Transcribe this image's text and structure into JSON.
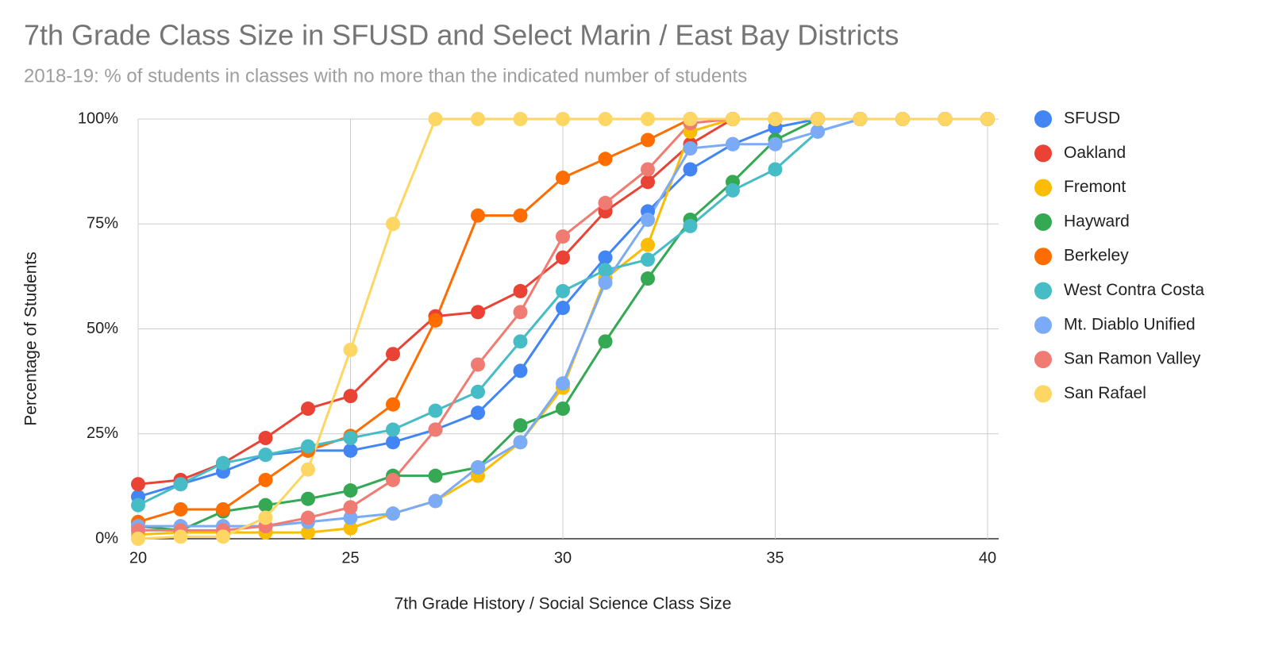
{
  "chart_data": {
    "type": "line",
    "title": "7th Grade Class Size in SFUSD and Select Marin / East Bay Districts",
    "subtitle": "2018-19: % of students in classes with no more than the indicated number of students",
    "x_label": "7th Grade History / Social Science Class Size",
    "y_label": "Percentage of Students",
    "x": [
      20,
      21,
      22,
      23,
      24,
      25,
      26,
      27,
      28,
      29,
      30,
      31,
      32,
      33,
      34,
      35,
      36,
      37,
      38,
      39,
      40
    ],
    "xlim": [
      20,
      40
    ],
    "xticks": [
      20,
      25,
      30,
      35,
      40
    ],
    "ylim": [
      0,
      100
    ],
    "yticks": [
      {
        "value": 0,
        "label": "0%"
      },
      {
        "value": 25,
        "label": "25%"
      },
      {
        "value": 50,
        "label": "50%"
      },
      {
        "value": 75,
        "label": "75%"
      },
      {
        "value": 100,
        "label": "100%"
      }
    ],
    "grid": true,
    "legend": "right",
    "series": [
      {
        "name": "SFUSD",
        "color": "#4285f4",
        "values": [
          10,
          13,
          16,
          20,
          21,
          21,
          23,
          26,
          30,
          40,
          55,
          67,
          78,
          88,
          94,
          98,
          100,
          100,
          100,
          100,
          100
        ]
      },
      {
        "name": "Oakland",
        "color": "#ea4335",
        "values": [
          13,
          14,
          18,
          24,
          31,
          34,
          44,
          53,
          54,
          59,
          67,
          78,
          85,
          94,
          100,
          100,
          100,
          100,
          100,
          100,
          100
        ]
      },
      {
        "name": "Fremont",
        "color": "#fbbc04",
        "values": [
          1,
          1.5,
          1.5,
          1.5,
          1.5,
          2.5,
          6,
          9,
          15,
          23,
          36,
          62,
          70,
          97,
          100,
          100,
          100,
          100,
          100,
          100,
          100
        ]
      },
      {
        "name": "Hayward",
        "color": "#34a853",
        "values": [
          3,
          2,
          6.5,
          8,
          9.5,
          11.5,
          15,
          15,
          17,
          27,
          31,
          47,
          62,
          76,
          85,
          95,
          100,
          100,
          100,
          100,
          100
        ]
      },
      {
        "name": "Berkeley",
        "color": "#ff6d01",
        "values": [
          4,
          7,
          7,
          14,
          21,
          24.5,
          32,
          52,
          77,
          77,
          86,
          90.5,
          95,
          100,
          100,
          100,
          100,
          100,
          100,
          100,
          100
        ]
      },
      {
        "name": "West Contra Costa",
        "color": "#46bdc6",
        "values": [
          8,
          13,
          18,
          20,
          22,
          24,
          26,
          30.5,
          35,
          47,
          59,
          64,
          66.5,
          74.5,
          83,
          88,
          97,
          100,
          100,
          100,
          100
        ]
      },
      {
        "name": "Mt. Diablo Unified",
        "color": "#7baaf7",
        "values": [
          3,
          3,
          3,
          3,
          4,
          5,
          6,
          9,
          17,
          23,
          37,
          61,
          76,
          93,
          94,
          94,
          97,
          100,
          100,
          100,
          100
        ]
      },
      {
        "name": "San Ramon Valley",
        "color": "#f07b72",
        "values": [
          2,
          2,
          2,
          3,
          5,
          7.5,
          14,
          26,
          41.5,
          54,
          72,
          80,
          88,
          99,
          100,
          100,
          100,
          100,
          100,
          100,
          100
        ]
      },
      {
        "name": "San Rafael",
        "color": "#fdd663",
        "values": [
          0,
          0.5,
          0.5,
          5,
          16.5,
          45,
          75,
          100,
          100,
          100,
          100,
          100,
          100,
          100,
          100,
          100,
          100,
          100,
          100,
          100,
          100
        ]
      }
    ]
  }
}
